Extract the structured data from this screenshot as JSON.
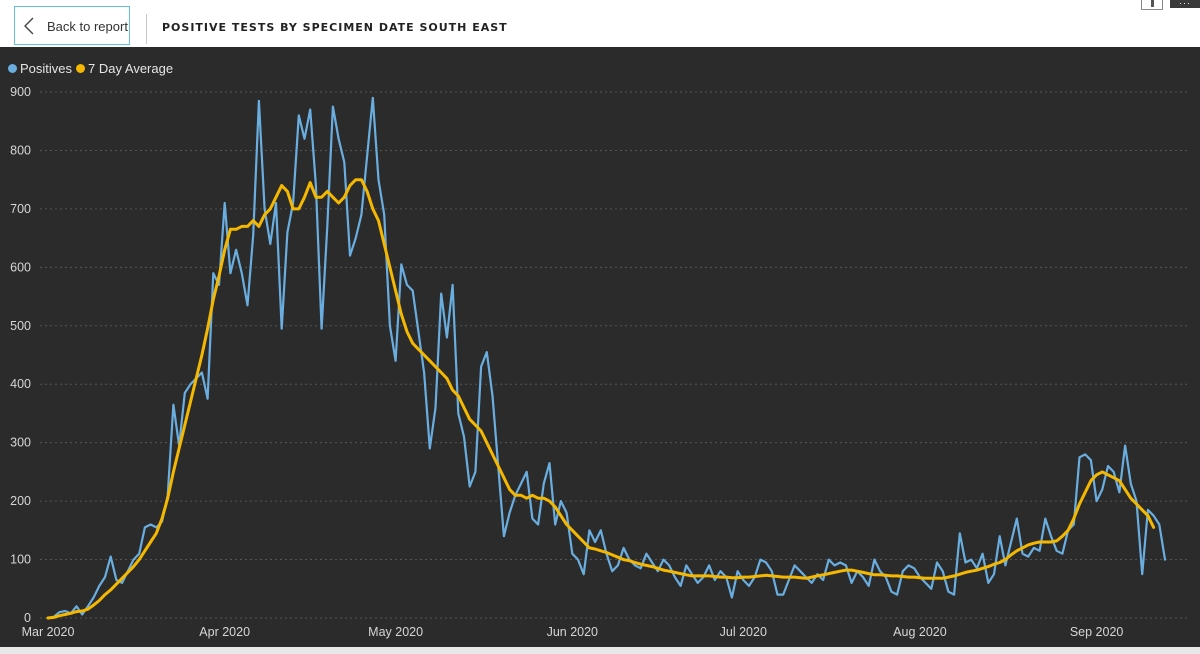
{
  "header": {
    "back_label": "Back to report",
    "title": "POSITIVE TESTS BY SPECIMEN DATE SOUTH EAST",
    "more_label": "···"
  },
  "colors": {
    "background": "#2b2b2b",
    "positives": "#6aaee0",
    "average": "#f5b800",
    "gridline": "#555555",
    "text": "#d6d6d6"
  },
  "chart_data": {
    "type": "line",
    "title": "POSITIVE TESTS BY SPECIMEN DATE SOUTH EAST",
    "xlabel": "",
    "ylabel": "",
    "ylim": [
      0,
      900
    ],
    "yticks": [
      0,
      100,
      200,
      300,
      400,
      500,
      600,
      700,
      800,
      900
    ],
    "x_tick_labels": [
      "Mar 2020",
      "Apr 2020",
      "May 2020",
      "Jun 2020",
      "Jul 2020",
      "Aug 2020",
      "Sep 2020"
    ],
    "x_tick_day_index": [
      0,
      31,
      61,
      92,
      122,
      153,
      184
    ],
    "start_date": "2020-03-01",
    "legend": [
      "Positives",
      "7 Day Average"
    ],
    "legend_position": "top-left",
    "grid": true,
    "series": [
      {
        "name": "Positives",
        "values": [
          0,
          2,
          10,
          12,
          8,
          20,
          6,
          20,
          35,
          55,
          70,
          105,
          65,
          60,
          80,
          100,
          110,
          155,
          160,
          155,
          165,
          210,
          365,
          295,
          385,
          400,
          410,
          420,
          375,
          590,
          570,
          710,
          590,
          630,
          590,
          535,
          655,
          885,
          700,
          640,
          710,
          495,
          660,
          710,
          860,
          820,
          870,
          740,
          495,
          670,
          875,
          820,
          780,
          620,
          650,
          690,
          790,
          890,
          750,
          690,
          500,
          440,
          605,
          570,
          560,
          490,
          420,
          290,
          360,
          555,
          480,
          570,
          350,
          310,
          225,
          250,
          430,
          455,
          380,
          260,
          140,
          180,
          210,
          230,
          250,
          170,
          160,
          230,
          265,
          160,
          200,
          180,
          110,
          100,
          75,
          150,
          130,
          150,
          110,
          80,
          90,
          120,
          100,
          90,
          85,
          110,
          95,
          80,
          100,
          90,
          70,
          55,
          90,
          75,
          60,
          70,
          90,
          65,
          80,
          70,
          35,
          80,
          65,
          55,
          70,
          100,
          95,
          80,
          40,
          40,
          65,
          90,
          80,
          70,
          60,
          75,
          65,
          100,
          90,
          95,
          90,
          60,
          80,
          70,
          55,
          100,
          80,
          70,
          45,
          40,
          80,
          90,
          85,
          70,
          60,
          50,
          95,
          80,
          45,
          40,
          145,
          95,
          100,
          85,
          110,
          60,
          75,
          140,
          90,
          130,
          170,
          110,
          105,
          120,
          115,
          170,
          140,
          115,
          110,
          150,
          160,
          275,
          280,
          270,
          200,
          220,
          260,
          250,
          215,
          295,
          230,
          200,
          75,
          185,
          175,
          160,
          100
        ]
      },
      {
        "name": "7 Day Average",
        "values": [
          0,
          1,
          4,
          6,
          8,
          11,
          12,
          15,
          22,
          30,
          40,
          48,
          58,
          68,
          78,
          88,
          100,
          115,
          130,
          145,
          170,
          205,
          250,
          290,
          330,
          370,
          410,
          450,
          495,
          545,
          585,
          630,
          665,
          665,
          670,
          670,
          680,
          670,
          690,
          700,
          720,
          740,
          730,
          700,
          700,
          720,
          745,
          720,
          720,
          730,
          720,
          710,
          720,
          740,
          750,
          750,
          730,
          700,
          680,
          640,
          600,
          560,
          520,
          490,
          470,
          460,
          450,
          440,
          430,
          420,
          410,
          390,
          380,
          360,
          340,
          330,
          320,
          300,
          280,
          260,
          240,
          220,
          210,
          210,
          205,
          210,
          205,
          205,
          200,
          190,
          175,
          160,
          150,
          140,
          130,
          120,
          118,
          115,
          112,
          108,
          104,
          100,
          98,
          95,
          92,
          90,
          88,
          85,
          82,
          80,
          78,
          76,
          74,
          72,
          72,
          72,
          72,
          71,
          70,
          70,
          69,
          69,
          70,
          70,
          71,
          72,
          73,
          72,
          71,
          70,
          70,
          70,
          69,
          68,
          70,
          72,
          74,
          76,
          78,
          80,
          82,
          82,
          80,
          78,
          76,
          74,
          74,
          73,
          72,
          72,
          71,
          70,
          70,
          69,
          68,
          68,
          68,
          68,
          70,
          72,
          75,
          78,
          80,
          82,
          85,
          88,
          92,
          95,
          100,
          108,
          115,
          120,
          125,
          128,
          130,
          130,
          130,
          132,
          140,
          150,
          170,
          195,
          215,
          235,
          245,
          250,
          245,
          240,
          235,
          220,
          205,
          195,
          185,
          175,
          155
        ]
      }
    ]
  }
}
